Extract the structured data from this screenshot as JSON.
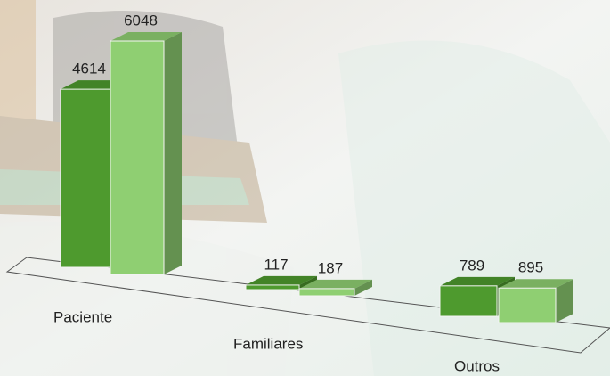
{
  "chart_data": {
    "type": "bar3d",
    "categories": [
      "Paciente",
      "Familiares",
      "Outros"
    ],
    "series": [
      {
        "color": "#4e9a2e",
        "values": [
          4614,
          117,
          789
        ]
      },
      {
        "color": "#8fcf72",
        "values": [
          6048,
          187,
          895
        ]
      }
    ]
  }
}
